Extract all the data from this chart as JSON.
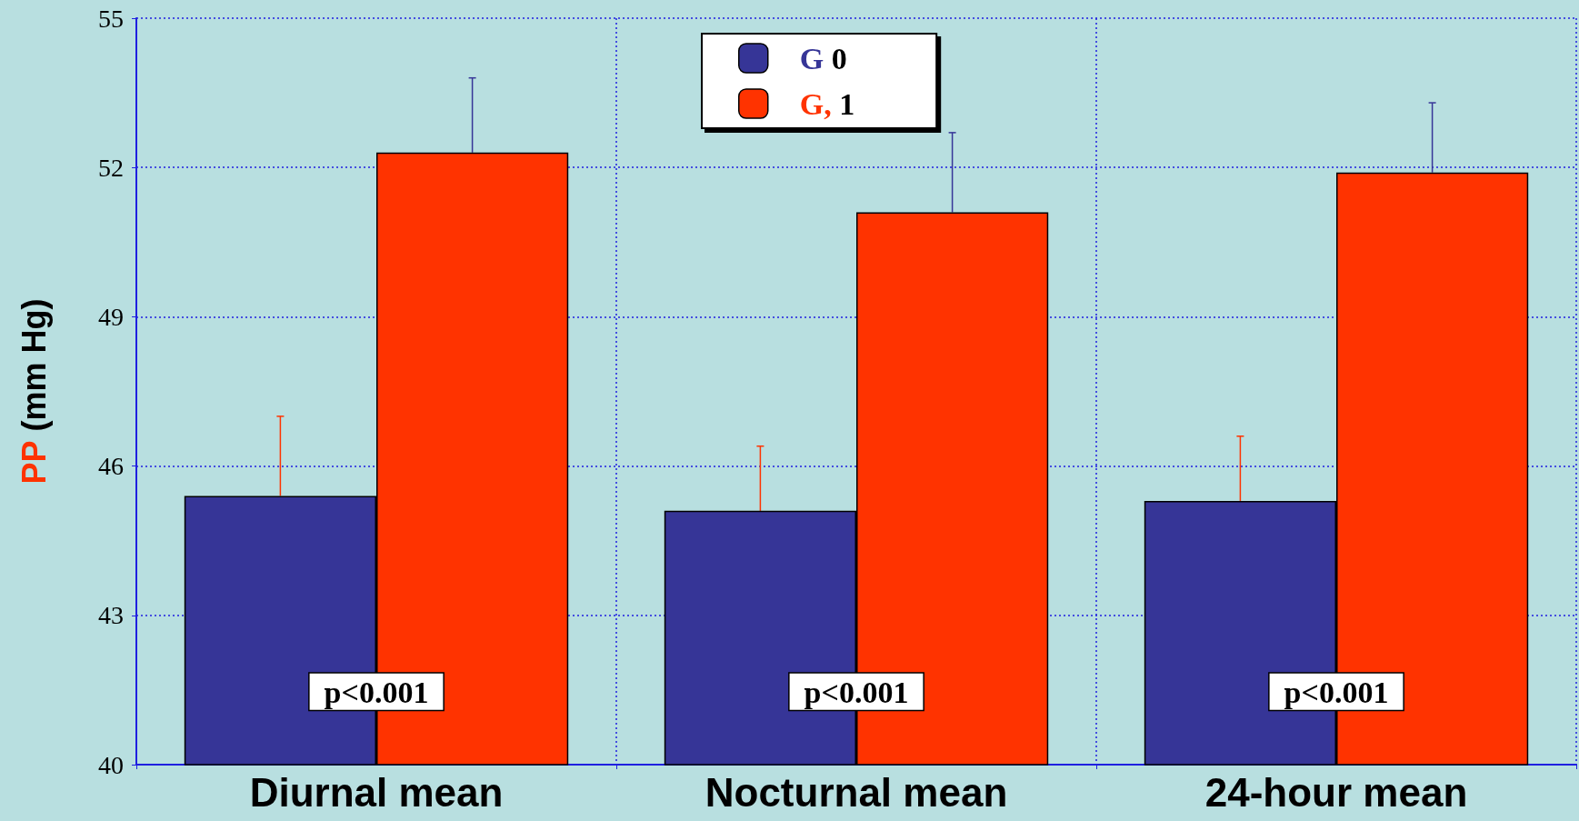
{
  "chart_data": {
    "type": "bar",
    "ylabel": "PP (mm Hg)",
    "categories": [
      "Diurnal mean",
      "Nocturnal mean",
      "24-hour mean"
    ],
    "series": [
      {
        "name": "G 0",
        "color": "#363597",
        "values": [
          45.4,
          45.1,
          45.3
        ],
        "errors": [
          [
            45.4,
            47.0
          ],
          [
            45.1,
            46.4
          ],
          [
            45.3,
            46.6
          ]
        ]
      },
      {
        "name": "G, 1",
        "color": "#ff3300",
        "values": [
          52.3,
          51.1,
          51.9
        ],
        "errors": [
          [
            52.3,
            53.8
          ],
          [
            51.1,
            52.7
          ],
          [
            51.9,
            53.3
          ]
        ]
      }
    ],
    "ylim": [
      40,
      55
    ],
    "yticks": [
      40,
      43,
      46,
      49,
      52,
      55
    ],
    "grid": true,
    "legend": "top",
    "annotations": [
      {
        "text": "p<0.001",
        "x": "Diurnal mean",
        "y": 41.1
      },
      {
        "text": "p<0.001",
        "x": "Nocturnal mean",
        "y": 41.1
      },
      {
        "text": "p<0.001",
        "x": "24-hour mean",
        "y": 41.1
      }
    ]
  }
}
